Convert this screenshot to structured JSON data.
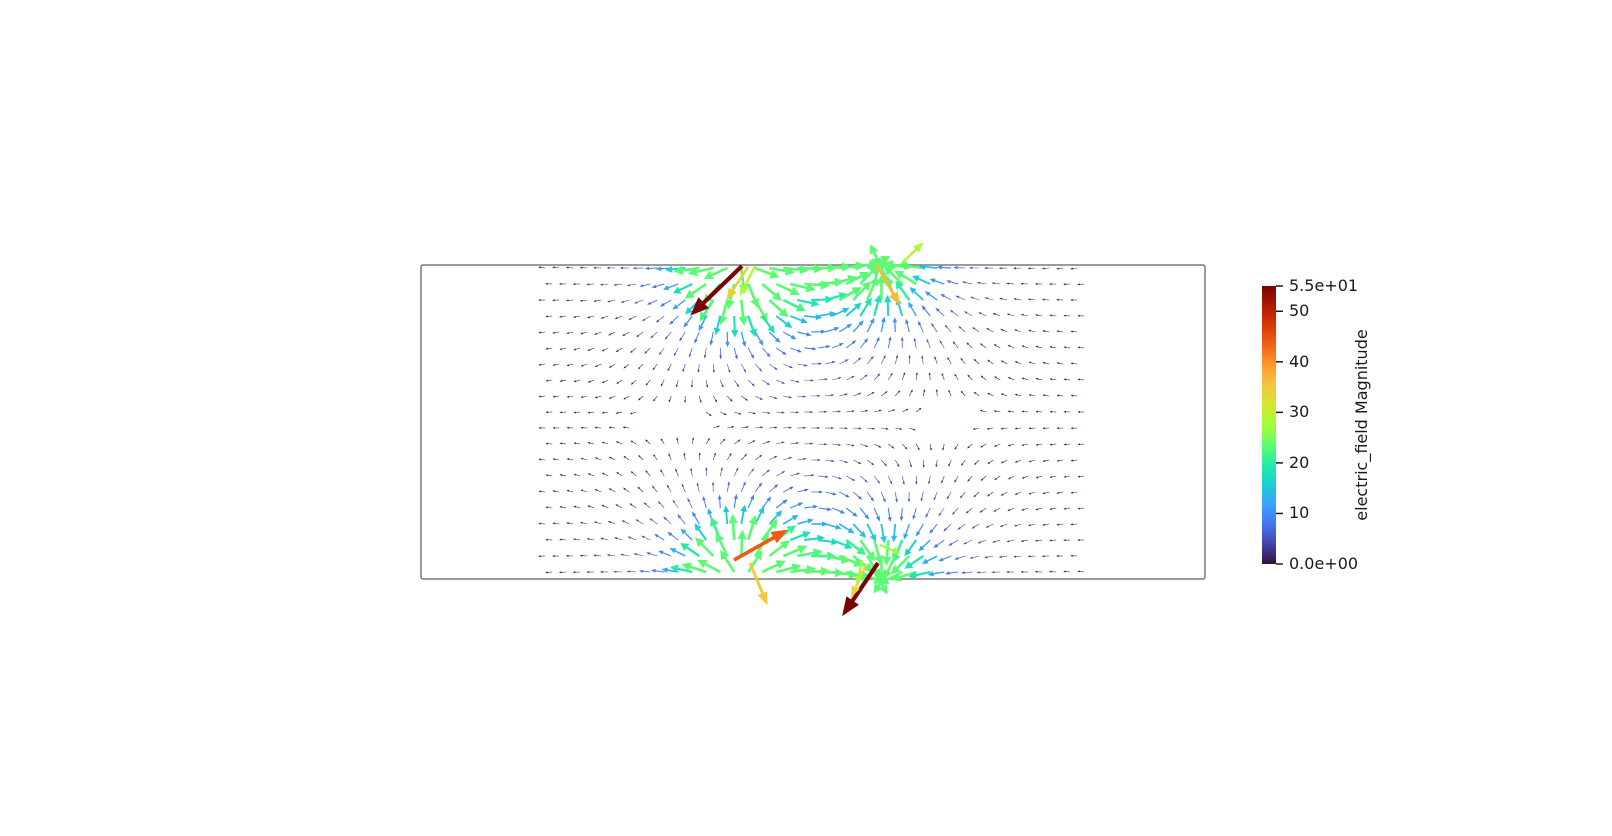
{
  "scalar_bar": {
    "title": "electric_field Magnitude",
    "range": [
      0,
      55
    ],
    "max_label": "5.5e+01",
    "min_label": "0.0e+00",
    "ticks": [
      {
        "value": 50,
        "label": "50"
      },
      {
        "value": 40,
        "label": "40"
      },
      {
        "value": 30,
        "label": "30"
      },
      {
        "value": 20,
        "label": "20"
      },
      {
        "value": 10,
        "label": "10"
      }
    ],
    "colormap": [
      "#30123b",
      "#4145ab",
      "#4675ed",
      "#39a2fc",
      "#1bcfd4",
      "#24eca6",
      "#61fc6c",
      "#a4fc3b",
      "#d1e834",
      "#f3c63a",
      "#fe9b2d",
      "#f36315",
      "#d93806",
      "#b11901",
      "#7a0402"
    ]
  }
}
